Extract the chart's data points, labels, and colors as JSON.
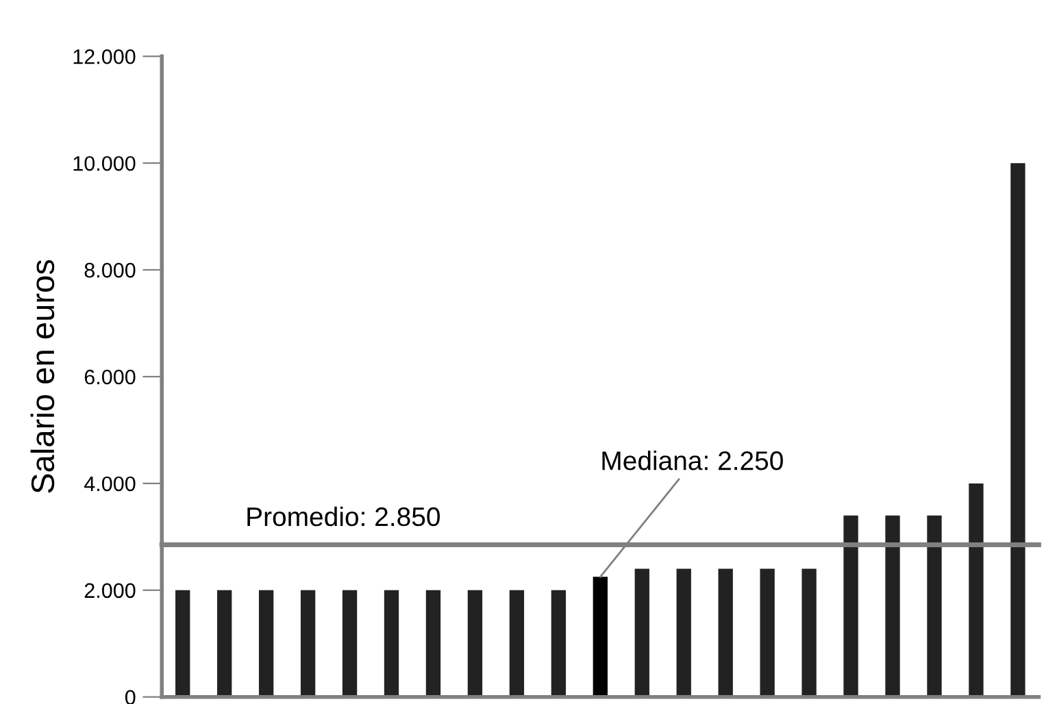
{
  "chart_data": {
    "type": "bar",
    "ylabel": "Salario en euros",
    "categories": [
      null,
      null,
      null,
      null,
      null,
      null,
      null,
      null,
      null,
      null,
      null,
      null,
      null,
      null,
      null,
      null,
      null,
      null,
      null,
      null,
      null
    ],
    "values": [
      2000,
      2000,
      2000,
      2000,
      2000,
      2000,
      2000,
      2000,
      2000,
      2000,
      2250,
      2400,
      2400,
      2400,
      2400,
      2400,
      3400,
      3400,
      3400,
      4000,
      10000
    ],
    "colors": [
      "#222222",
      "#222222",
      "#222222",
      "#222222",
      "#222222",
      "#222222",
      "#222222",
      "#222222",
      "#222222",
      "#222222",
      "#000000",
      "#222222",
      "#222222",
      "#222222",
      "#222222",
      "#222222",
      "#222222",
      "#222222",
      "#222222",
      "#222222",
      "#222222"
    ],
    "ylim": [
      0,
      12000
    ],
    "yticks": [
      {
        "value": 0,
        "label": "0"
      },
      {
        "value": 2000,
        "label": "2.000"
      },
      {
        "value": 4000,
        "label": "4.000"
      },
      {
        "value": 6000,
        "label": "6.000"
      },
      {
        "value": 8000,
        "label": "8.000"
      },
      {
        "value": 10000,
        "label": "10.000"
      },
      {
        "value": 12000,
        "label": "12.000"
      }
    ],
    "ref_lines": [
      {
        "axis": "y",
        "value": 2850,
        "label": "Promedio: 2.850",
        "color": "#808080"
      }
    ],
    "annotations": [
      "Mediana: 2.250"
    ],
    "tick_labels": "y",
    "grid": false,
    "legend": false
  }
}
